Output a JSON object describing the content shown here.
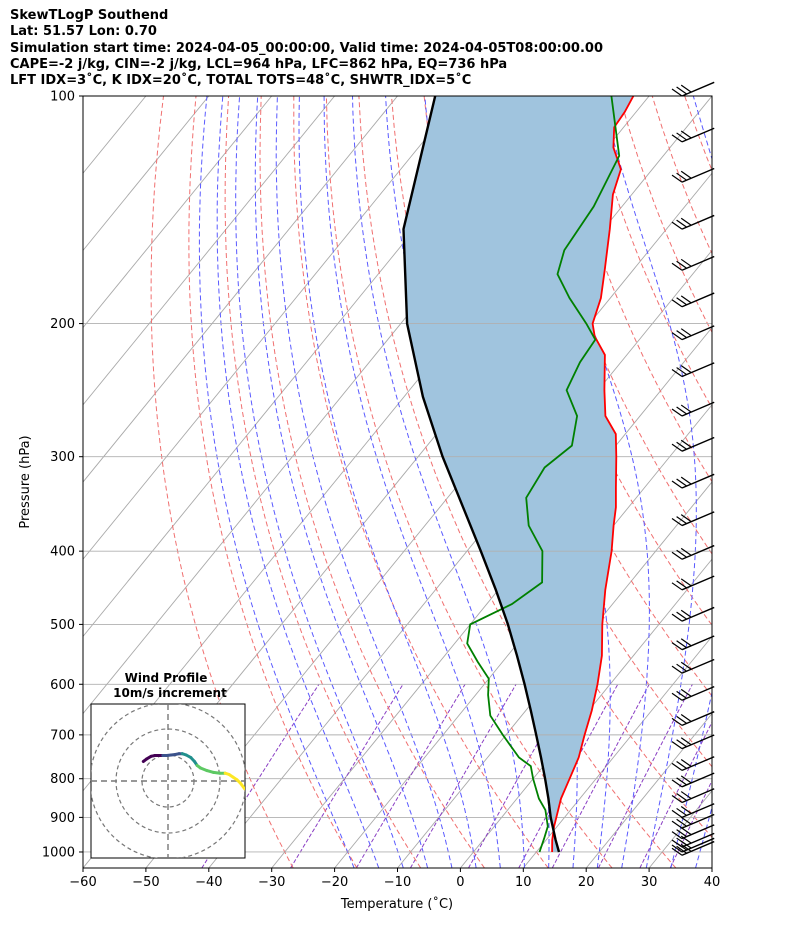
{
  "header": {
    "line1": "SkewTLogP Southend",
    "line2": "Lat: 51.57   Lon: 0.70",
    "line3": "Simulation start time: 2024-04-05_00:00:00, Valid time: 2024-04-05T08:00:00.00",
    "line4": "CAPE=-2 j/kg, CIN=-2 j/kg, LCL=964 hPa, LFC=862 hPa, EQ=736 hPa",
    "line5": "LFT IDX=3˚C, K IDX=20˚C, TOTAL TOTS=48˚C, SHWTR_IDX=5˚C"
  },
  "chart_data": {
    "type": "line",
    "subtype": "skewt-logp",
    "xlabel": "Temperature (˚C)",
    "ylabel": "Pressure (hPa)",
    "xlim": [
      -60,
      40
    ],
    "ylim": [
      1050,
      100
    ],
    "y_scale": "log",
    "grid": true,
    "x_ticks": [
      -60,
      -50,
      -40,
      -30,
      -20,
      -10,
      0,
      10,
      20,
      30,
      40
    ],
    "x_tick_labels": [
      "−60",
      "−50",
      "−40",
      "−30",
      "−20",
      "−10",
      "0",
      "10",
      "20",
      "30",
      "40"
    ],
    "y_ticks": [
      100,
      200,
      300,
      400,
      500,
      600,
      700,
      800,
      900,
      1000
    ],
    "y_tick_labels": [
      "100",
      "200",
      "300",
      "400",
      "500",
      "600",
      "700",
      "800",
      "900",
      "1000"
    ],
    "colors": {
      "temperature": "#ff0000",
      "dewpoint": "#008000",
      "parcel": "#000000",
      "cape_fill": "#a0c4de",
      "dry_adiabat": "#f07070",
      "moist_adiabat": "#5a5aff",
      "mixing_ratio": "#8a3fc4",
      "isotherm": "#a9a9a9"
    },
    "series": [
      {
        "key": "temperature",
        "points": [
          [
            1000,
            12.5
          ],
          [
            965,
            11.0
          ],
          [
            925,
            9.5
          ],
          [
            850,
            7.0
          ],
          [
            800,
            5.8
          ],
          [
            750,
            4.5
          ],
          [
            700,
            2.5
          ],
          [
            650,
            0.5
          ],
          [
            600,
            -2.0
          ],
          [
            550,
            -5.0
          ],
          [
            500,
            -9.0
          ],
          [
            450,
            -13.0
          ],
          [
            400,
            -17.0
          ],
          [
            370,
            -20.0
          ],
          [
            350,
            -22.0
          ],
          [
            330,
            -24.5
          ],
          [
            300,
            -28.5
          ],
          [
            280,
            -31.5
          ],
          [
            265,
            -35.5
          ],
          [
            245,
            -39.0
          ],
          [
            220,
            -43.5
          ],
          [
            208,
            -47.5
          ],
          [
            200,
            -49.5
          ],
          [
            185,
            -51.5
          ],
          [
            170,
            -54.5
          ],
          [
            150,
            -59.0
          ],
          [
            135,
            -63.0
          ],
          [
            125,
            -65.0
          ],
          [
            117,
            -69.0
          ],
          [
            110,
            -71.5
          ],
          [
            105,
            -71.8
          ],
          [
            100,
            -72.5
          ]
        ]
      },
      {
        "key": "dewpoint",
        "points": [
          [
            1000,
            10.5
          ],
          [
            960,
            9.5
          ],
          [
            925,
            8.5
          ],
          [
            880,
            6.0
          ],
          [
            850,
            3.5
          ],
          [
            800,
            0.0
          ],
          [
            770,
            -2.0
          ],
          [
            750,
            -5.0
          ],
          [
            700,
            -10.5
          ],
          [
            660,
            -15.0
          ],
          [
            620,
            -18.0
          ],
          [
            590,
            -20.0
          ],
          [
            560,
            -24.0
          ],
          [
            530,
            -28.0
          ],
          [
            500,
            -30.0
          ],
          [
            470,
            -26.0
          ],
          [
            440,
            -24.0
          ],
          [
            400,
            -28.0
          ],
          [
            370,
            -33.5
          ],
          [
            340,
            -37.5
          ],
          [
            310,
            -38.5
          ],
          [
            290,
            -37.0
          ],
          [
            265,
            -40.0
          ],
          [
            245,
            -45.0
          ],
          [
            225,
            -46.5
          ],
          [
            210,
            -47.0
          ],
          [
            200,
            -50.5
          ],
          [
            185,
            -56.5
          ],
          [
            172,
            -61.5
          ],
          [
            160,
            -63.5
          ],
          [
            140,
            -64.5
          ],
          [
            120,
            -67.0
          ],
          [
            100,
            -76.0
          ]
        ]
      },
      {
        "key": "parcel",
        "points": [
          [
            1000,
            13.6
          ],
          [
            964,
            11.5
          ],
          [
            900,
            7.8
          ],
          [
            850,
            5.0
          ],
          [
            800,
            1.9
          ],
          [
            750,
            -1.5
          ],
          [
            700,
            -5.2
          ],
          [
            650,
            -9.2
          ],
          [
            600,
            -13.6
          ],
          [
            550,
            -18.5
          ],
          [
            500,
            -24.0
          ],
          [
            450,
            -30.4
          ],
          [
            400,
            -37.8
          ],
          [
            350,
            -46.3
          ],
          [
            300,
            -56.1
          ],
          [
            250,
            -67.0
          ],
          [
            200,
            -79.0
          ],
          [
            150,
            -91.8
          ],
          [
            100,
            -104.0
          ]
        ]
      }
    ],
    "wind_barbs": {
      "color": "#000000",
      "levels": [
        1010,
        1000,
        985,
        960,
        930,
        900,
        860,
        820,
        780,
        730,
        680,
        630,
        580,
        540,
        495,
        450,
        410,
        370,
        330,
        295,
        265,
        235,
        210,
        190,
        170,
        150,
        130,
        115,
        100
      ]
    },
    "inset": {
      "title": "Wind Profile",
      "subtitle": "10m/s increment",
      "rings": [
        1,
        2,
        3
      ],
      "hodograph": [
        [
          0.95,
          -0.75
        ],
        [
          0.82,
          -0.85
        ],
        [
          0.65,
          -0.95
        ],
        [
          0.5,
          -0.98
        ],
        [
          0.35,
          -0.98
        ],
        [
          0.2,
          -0.98
        ],
        [
          0.05,
          -0.98
        ],
        [
          -0.12,
          -1.0
        ],
        [
          -0.28,
          -1.02
        ],
        [
          -0.42,
          -1.05
        ],
        [
          -0.55,
          -1.05
        ],
        [
          -0.7,
          -1.0
        ],
        [
          -0.88,
          -0.9
        ],
        [
          -1.02,
          -0.75
        ],
        [
          -1.12,
          -0.6
        ],
        [
          -1.25,
          -0.5
        ],
        [
          -1.5,
          -0.4
        ],
        [
          -1.75,
          -0.33
        ],
        [
          -2.0,
          -0.3
        ],
        [
          -2.2,
          -0.3
        ],
        [
          -2.35,
          -0.25
        ],
        [
          -2.5,
          -0.15
        ],
        [
          -2.65,
          -0.05
        ],
        [
          -2.8,
          0.1
        ],
        [
          -2.95,
          0.3
        ]
      ],
      "colors": [
        "#440154",
        "#3b528b",
        "#21908d",
        "#5dc963",
        "#fde725"
      ]
    }
  }
}
